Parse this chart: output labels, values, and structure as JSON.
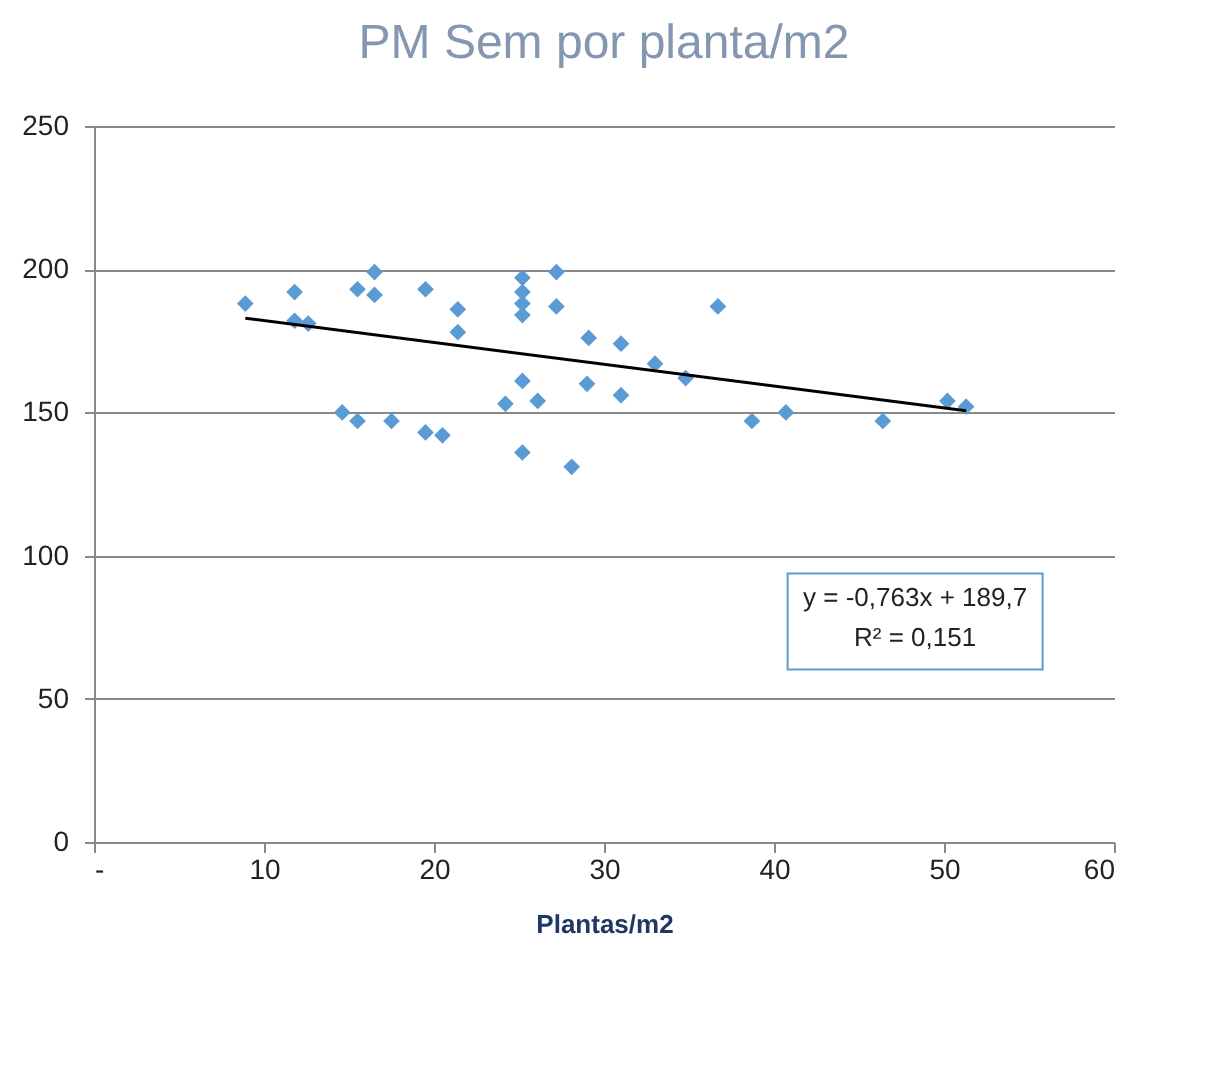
{
  "chart_data": {
    "type": "scatter",
    "title": "PM Sem por planta/m2",
    "xlabel": "Plantas/m2",
    "xlim": [
      0,
      60
    ],
    "xticks": [
      {
        "value": 0,
        "label": "-"
      },
      10,
      20,
      30,
      40,
      50,
      60
    ],
    "ylim": [
      0,
      250
    ],
    "yticks": [
      0,
      50,
      100,
      150,
      200,
      250
    ],
    "grid": "y",
    "marker": "diamond",
    "annotations": [
      "y = -0,763x + 189,7",
      "R² = 0,151"
    ],
    "series": [
      {
        "color": "#5b9bd5",
        "x": [
          8.9,
          11.8,
          11.8,
          12.6,
          15.5,
          16.5,
          16.5,
          19.5,
          21.4,
          21.4,
          25.2,
          25.2,
          25.2,
          25.2,
          27.2,
          27.2,
          25.2,
          24.2,
          26.1,
          14.6,
          15.5,
          17.5,
          19.5,
          20.5,
          25.2,
          28.1,
          29.1,
          31,
          29,
          31,
          33,
          34.8,
          36.7,
          38.7,
          40.7,
          46.4,
          50.2,
          51.3
        ],
        "values": [
          188,
          192,
          182,
          181,
          193,
          199,
          191,
          193,
          186,
          178,
          197,
          192,
          188,
          184,
          199,
          187,
          161,
          153,
          154,
          150,
          147,
          147,
          143,
          142,
          136,
          131,
          176,
          174,
          160,
          156,
          167,
          162,
          187,
          147,
          150,
          147,
          154,
          152
        ]
      },
      {
        "type": "line",
        "color": "#000000",
        "marker": "none",
        "x": [
          8.9,
          51.3
        ],
        "values": [
          182.9,
          150.6
        ]
      }
    ]
  }
}
